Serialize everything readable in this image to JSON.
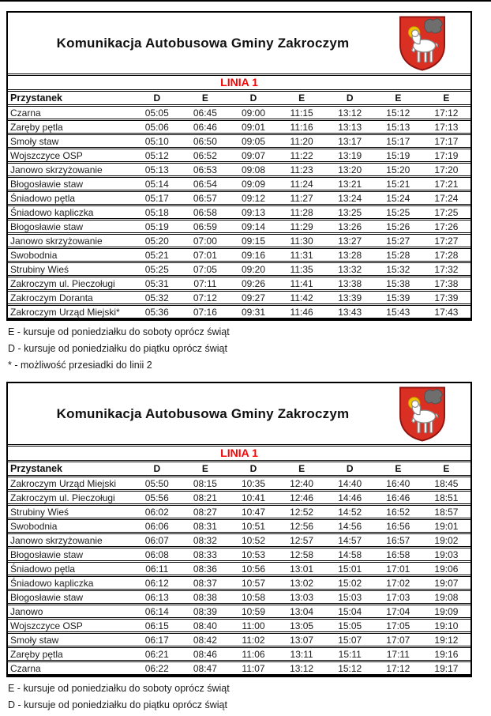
{
  "doc": {
    "title": "Komunikacja Autobusowa Gminy Zakroczym",
    "line_label": "LINIA 1",
    "stop_header": "Przystanek",
    "day_codes": [
      "D",
      "E",
      "D",
      "E",
      "D",
      "E",
      "E"
    ],
    "logo": "zakroczym-coat-of-arms",
    "colors": {
      "line_label_red": "#FF0000",
      "crest_red": "#DA2F23",
      "crest_halo_yellow": "#F2C200",
      "border_black": "#000000"
    }
  },
  "tables": [
    {
      "rows": [
        {
          "stop": "Czarna",
          "times": [
            "05:05",
            "06:45",
            "09:00",
            "11:15",
            "13:12",
            "15:12",
            "17:12"
          ]
        },
        {
          "stop": "Zaręby pętla",
          "times": [
            "05:06",
            "06:46",
            "09:01",
            "11:16",
            "13:13",
            "15:13",
            "17:13"
          ]
        },
        {
          "stop": "Smoły staw",
          "times": [
            "05:10",
            "06:50",
            "09:05",
            "11:20",
            "13:17",
            "15:17",
            "17:17"
          ]
        },
        {
          "stop": "Wojszczyce OSP",
          "times": [
            "05:12",
            "06:52",
            "09:07",
            "11:22",
            "13:19",
            "15:19",
            "17:19"
          ]
        },
        {
          "stop": "Janowo skrzyżowanie",
          "times": [
            "05:13",
            "06:53",
            "09:08",
            "11:23",
            "13:20",
            "15:20",
            "17:20"
          ]
        },
        {
          "stop": "Błogosławie staw",
          "times": [
            "05:14",
            "06:54",
            "09:09",
            "11:24",
            "13:21",
            "15:21",
            "17:21"
          ]
        },
        {
          "stop": "Śniadowo pętla",
          "times": [
            "05:17",
            "06:57",
            "09:12",
            "11:27",
            "13:24",
            "15:24",
            "17:24"
          ]
        },
        {
          "stop": "Śniadowo kapliczka",
          "times": [
            "05:18",
            "06:58",
            "09:13",
            "11:28",
            "13:25",
            "15:25",
            "17:25"
          ]
        },
        {
          "stop": "Błogosławie staw",
          "times": [
            "05:19",
            "06:59",
            "09:14",
            "11:29",
            "13:26",
            "15:26",
            "17:26"
          ]
        },
        {
          "stop": "Janowo skrzyżowanie",
          "times": [
            "05:20",
            "07:00",
            "09:15",
            "11:30",
            "13:27",
            "15:27",
            "17:27"
          ]
        },
        {
          "stop": "Swobodnia",
          "times": [
            "05:21",
            "07:01",
            "09:16",
            "11:31",
            "13:28",
            "15:28",
            "17:28"
          ]
        },
        {
          "stop": "Strubiny Wieś",
          "times": [
            "05:25",
            "07:05",
            "09:20",
            "11:35",
            "13:32",
            "15:32",
            "17:32"
          ]
        },
        {
          "stop": "Zakroczym ul. Pieczoługi",
          "times": [
            "05:31",
            "07:11",
            "09:26",
            "11:41",
            "13:38",
            "15:38",
            "17:38"
          ]
        },
        {
          "stop": "Zakroczym Doranta",
          "times": [
            "05:32",
            "07:12",
            "09:27",
            "11:42",
            "13:39",
            "15:39",
            "17:39"
          ]
        },
        {
          "stop": "Zakroczym Urząd Miejski*",
          "times": [
            "05:36",
            "07:16",
            "09:31",
            "11:46",
            "13:43",
            "15:43",
            "17:43"
          ]
        }
      ],
      "footnotes": [
        "E - kursuje od poniedziałku do soboty oprócz świąt",
        "D - kursuje od poniedziałku do piątku oprócz świąt",
        "* - możliwość przesiadki do linii 2"
      ]
    },
    {
      "rows": [
        {
          "stop": "Zakroczym Urząd Miejski",
          "times": [
            "05:50",
            "08:15",
            "10:35",
            "12:40",
            "14:40",
            "16:40",
            "18:45"
          ]
        },
        {
          "stop": "Zakroczym ul. Pieczoługi",
          "times": [
            "05:56",
            "08:21",
            "10:41",
            "12:46",
            "14:46",
            "16:46",
            "18:51"
          ]
        },
        {
          "stop": "Strubiny Wieś",
          "times": [
            "06:02",
            "08:27",
            "10:47",
            "12:52",
            "14:52",
            "16:52",
            "18:57"
          ]
        },
        {
          "stop": "Swobodnia",
          "times": [
            "06:06",
            "08:31",
            "10:51",
            "12:56",
            "14:56",
            "16:56",
            "19:01"
          ]
        },
        {
          "stop": "Janowo skrzyżowanie",
          "times": [
            "06:07",
            "08:32",
            "10:52",
            "12:57",
            "14:57",
            "16:57",
            "19:02"
          ]
        },
        {
          "stop": "Błogosławie staw",
          "times": [
            "06:08",
            "08:33",
            "10:53",
            "12:58",
            "14:58",
            "16:58",
            "19:03"
          ]
        },
        {
          "stop": "Śniadowo pętla",
          "times": [
            "06:11",
            "08:36",
            "10:56",
            "13:01",
            "15:01",
            "17:01",
            "19:06"
          ]
        },
        {
          "stop": "Śniadowo kapliczka",
          "times": [
            "06:12",
            "08:37",
            "10:57",
            "13:02",
            "15:02",
            "17:02",
            "19:07"
          ]
        },
        {
          "stop": "Błogosławie staw",
          "times": [
            "06:13",
            "08:38",
            "10:58",
            "13:03",
            "15:03",
            "17:03",
            "19:08"
          ]
        },
        {
          "stop": "Janowo",
          "times": [
            "06:14",
            "08:39",
            "10:59",
            "13:04",
            "15:04",
            "17:04",
            "19:09"
          ]
        },
        {
          "stop": "Wojszczyce OSP",
          "times": [
            "06:15",
            "08:40",
            "11:00",
            "13:05",
            "15:05",
            "17:05",
            "19:10"
          ]
        },
        {
          "stop": "Smoły staw",
          "times": [
            "06:17",
            "08:42",
            "11:02",
            "13:07",
            "15:07",
            "17:07",
            "19:12"
          ]
        },
        {
          "stop": "Zaręby pętla",
          "times": [
            "06:21",
            "08:46",
            "11:06",
            "13:11",
            "15:11",
            "17:11",
            "19:16"
          ]
        },
        {
          "stop": "Czarna",
          "times": [
            "06:22",
            "08:47",
            "11:07",
            "13:12",
            "15:12",
            "17:12",
            "19:17"
          ]
        }
      ],
      "footnotes": [
        "E - kursuje od poniedziałku do soboty oprócz świąt",
        "D - kursuje od poniedziałku do piątku oprócz świąt"
      ]
    }
  ]
}
